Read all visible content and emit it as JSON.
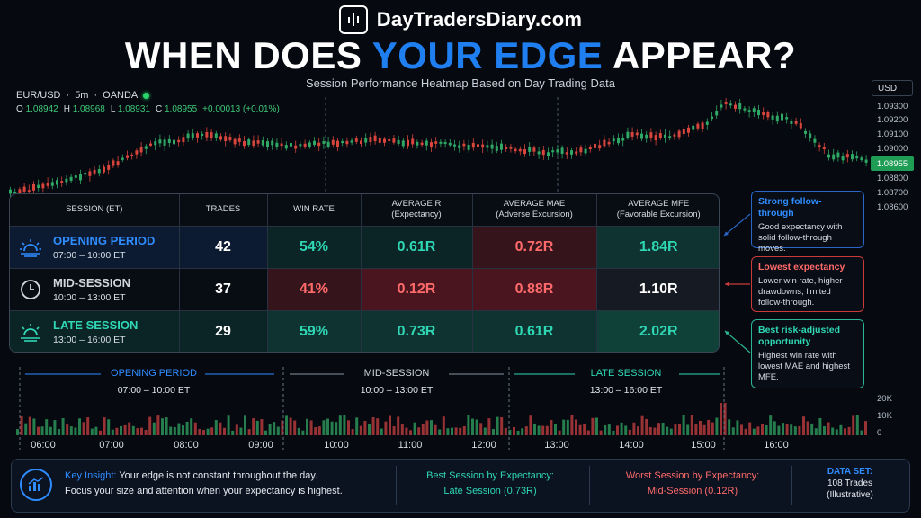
{
  "brand": {
    "name": "DayTradersDiary.com"
  },
  "headline": {
    "before": "WHEN DOES ",
    "accent": "YOUR EDGE",
    "after": " APPEAR?"
  },
  "subtitle": "Session Performance Heatmap Based on Day Trading Data",
  "chart_header": {
    "pair": "EUR/USD",
    "timeframe": "5m",
    "broker": "OANDA",
    "sep": "·",
    "ohlc": {
      "o": "1.08942",
      "h": "1.08968",
      "l": "1.08931",
      "c": "1.08955",
      "change": "+0.00013 (+0.01%)"
    },
    "currency": "USD"
  },
  "price_axis": [
    "1.09300",
    "1.09200",
    "1.09100",
    "1.09000",
    "1.08900",
    "1.08800",
    "1.08700",
    "1.08600"
  ],
  "current_price": "1.08955",
  "table": {
    "headers": {
      "session": "SESSION (ET)",
      "trades": "TRADES",
      "win_rate": "WIN RATE",
      "avg_r_1": "AVERAGE R",
      "avg_r_2": "(Expectancy)",
      "mae_1": "AVERAGE MAE",
      "mae_2": "(Adverse Excursion)",
      "mfe_1": "AVERAGE MFE",
      "mfe_2": "(Favorable Excursion)"
    },
    "rows": [
      {
        "name": "OPENING PERIOD",
        "time": "07:00 – 10:00 ET",
        "trades": "42",
        "win_rate": "54%",
        "avg_r": "0.61R",
        "mae": "0.72R",
        "mfe": "1.84R"
      },
      {
        "name": "MID-SESSION",
        "time": "10:00 – 13:00 ET",
        "trades": "37",
        "win_rate": "41%",
        "avg_r": "0.12R",
        "mae": "0.88R",
        "mfe": "1.10R"
      },
      {
        "name": "LATE SESSION",
        "time": "13:00 – 16:00 ET",
        "trades": "29",
        "win_rate": "59%",
        "avg_r": "0.73R",
        "mae": "0.61R",
        "mfe": "2.02R"
      }
    ]
  },
  "callouts": [
    {
      "title": "Strong follow-through",
      "body": "Good expectancy with solid follow-through moves."
    },
    {
      "title": "Lowest expectancy",
      "body": "Lower win rate, higher drawdowns, limited follow-through."
    },
    {
      "title": "Best risk-adjusted opportunity",
      "body": "Highest win rate with lowest MAE and highest MFE."
    }
  ],
  "session_band": [
    {
      "name": "OPENING PERIOD",
      "time": "07:00 – 10:00 ET"
    },
    {
      "name": "MID-SESSION",
      "time": "10:00 – 13:00 ET"
    },
    {
      "name": "LATE SESSION",
      "time": "13:00 – 16:00 ET"
    }
  ],
  "volume_axis": [
    "20K",
    "10K",
    "0"
  ],
  "time_axis": [
    "06:00",
    "07:00",
    "08:00",
    "09:00",
    "10:00",
    "11:00",
    "12:00",
    "13:00",
    "14:00",
    "15:00",
    "16:00"
  ],
  "footer": {
    "insight_label": "Key Insight:",
    "insight_line1": "Your edge is not constant throughout the day.",
    "insight_line2": "Focus your size and attention when your expectancy is highest.",
    "best_label": "Best Session by Expectancy:",
    "best_value": "Late Session (0.73R)",
    "worst_label": "Worst Session by Expectancy:",
    "worst_value": "Mid-Session (0.12R)",
    "dataset_label": "DATA SET:",
    "dataset_line1": "108 Trades",
    "dataset_line2": "(Illustrative)"
  },
  "colors": {
    "accent_blue": "#1f7ff0",
    "teal": "#2fd7b5",
    "red": "#ff6b6b",
    "up_candle": "#2fa866",
    "down_candle": "#d8453c",
    "background": "#06090f"
  },
  "icons": [
    "chart-logo-icon",
    "sunrise-icon",
    "clock-icon",
    "sunset-icon",
    "bar-chart-icon"
  ]
}
